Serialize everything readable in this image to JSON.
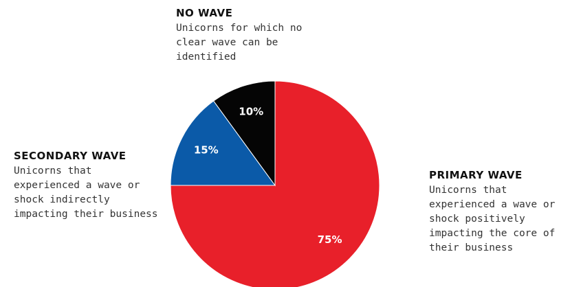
{
  "chart_data": {
    "type": "pie",
    "slices": [
      {
        "label": "PRIMARY WAVE",
        "value": 75,
        "value_label": "75%",
        "description": "Unicorns that\nexperienced a wave or\nshock positively\nimpacting the core of\ntheir business",
        "color": "#e8202a"
      },
      {
        "label": "SECONDARY WAVE",
        "value": 15,
        "value_label": "15%",
        "description": "Unicorns that\nexperienced a wave or\nshock indirectly\nimpacting their business",
        "color": "#0b5aa8"
      },
      {
        "label": "NO WAVE",
        "value": 10,
        "value_label": "10%",
        "description": "Unicorns for which no\nclear wave can be\nidentified",
        "color": "#050505"
      }
    ],
    "start": "12 o'clock",
    "direction": "clockwise"
  },
  "colors": {
    "value_label_text": "#ffffff",
    "slice_border": "#ffffff",
    "background": "#ffffff"
  }
}
